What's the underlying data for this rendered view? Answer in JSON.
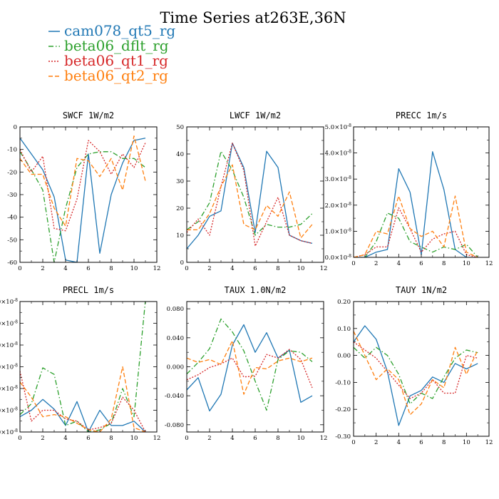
{
  "figure": {
    "title": "Time Series at263E,36N"
  },
  "legend": [
    {
      "name": "cam078_qt5_rg",
      "color": "#1f77b4",
      "dash": "solid"
    },
    {
      "name": "beta06_dflt_rg",
      "color": "#2ca02c",
      "dash": "dashdot"
    },
    {
      "name": "beta06_qt1_rg",
      "color": "#d62728",
      "dash": "dotted"
    },
    {
      "name": "beta06_qt2_rg",
      "color": "#ff7f0e",
      "dash": "dashed"
    }
  ],
  "chart_data": [
    {
      "type": "line",
      "title": "SWCF  1W/m2",
      "x": [
        0,
        1,
        2,
        3,
        4,
        5,
        6,
        7,
        8,
        9,
        10,
        11
      ],
      "xlim": [
        0,
        12
      ],
      "xticks": [
        0,
        2,
        4,
        6,
        8,
        10,
        12
      ],
      "xticklabels": [
        "0",
        "2",
        "4",
        "6",
        "8",
        "10",
        "12"
      ],
      "ylim": [
        -60,
        0
      ],
      "yticks": [
        -60,
        -50,
        -40,
        -30,
        -20,
        -10,
        0
      ],
      "yticklabels": [
        "-60",
        "-50",
        "-40",
        "-30",
        "-20",
        "-10",
        "0"
      ],
      "series": [
        {
          "name": "cam078_qt5_rg",
          "values": [
            -5,
            -12,
            -19,
            -31,
            -59,
            -60,
            -12,
            -56,
            -30,
            -16,
            -6,
            -5
          ]
        },
        {
          "name": "beta06_dflt_rg",
          "values": [
            -11,
            -19,
            -28,
            -60,
            -36,
            -18,
            -12,
            -11,
            -11,
            -14,
            -14,
            -18
          ]
        },
        {
          "name": "beta06_qt1_rg",
          "values": [
            -10,
            -20,
            -13,
            -45,
            -46,
            -32,
            -6,
            -11,
            -21,
            -12,
            -18,
            -7
          ]
        },
        {
          "name": "beta06_qt2_rg",
          "values": [
            -14,
            -21,
            -21,
            -36,
            -44,
            -14,
            -15,
            -22,
            -14,
            -28,
            -4,
            -24
          ]
        }
      ]
    },
    {
      "type": "line",
      "title": "LWCF  1W/m2",
      "x": [
        0,
        1,
        2,
        3,
        4,
        5,
        6,
        7,
        8,
        9,
        10,
        11
      ],
      "xlim": [
        0,
        12
      ],
      "xticks": [
        0,
        2,
        4,
        6,
        8,
        10,
        12
      ],
      "xticklabels": [
        "0",
        "2",
        "4",
        "6",
        "8",
        "10",
        "12"
      ],
      "ylim": [
        0,
        50
      ],
      "yticks": [
        0,
        10,
        20,
        30,
        40,
        50
      ],
      "yticklabels": [
        "0",
        "10",
        "20",
        "30",
        "40",
        "50"
      ],
      "series": [
        {
          "name": "cam078_qt5_rg",
          "values": [
            5,
            10,
            17,
            19,
            44,
            35,
            11,
            41,
            35,
            10,
            8,
            7
          ]
        },
        {
          "name": "beta06_dflt_rg",
          "values": [
            12,
            15,
            22,
            41,
            34,
            24,
            10,
            14,
            13,
            13,
            14,
            18
          ]
        },
        {
          "name": "beta06_qt1_rg",
          "values": [
            11,
            16,
            10,
            28,
            44,
            34,
            6,
            15,
            24,
            10,
            8,
            7
          ]
        },
        {
          "name": "beta06_qt2_rg",
          "values": [
            12,
            12,
            18,
            28,
            36,
            14,
            12,
            21,
            17,
            26,
            9,
            14
          ]
        }
      ]
    },
    {
      "type": "line",
      "title": "PRECC   1m/s",
      "x": [
        0,
        1,
        2,
        3,
        4,
        5,
        6,
        7,
        8,
        9,
        10,
        11
      ],
      "xlim": [
        0,
        12
      ],
      "xticks": [
        0,
        2,
        4,
        6,
        8,
        10,
        12
      ],
      "xticklabels": [
        "0",
        "2",
        "4",
        "6",
        "8",
        "10",
        "12"
      ],
      "ylim": [
        0,
        5e-08
      ],
      "yticks": [
        0,
        1e-08,
        2e-08,
        3e-08,
        4e-08,
        5e-08
      ],
      "yticklabels_mantissa": [
        "0.0",
        "1.0",
        "2.0",
        "3.0",
        "4.0",
        "5.0"
      ],
      "ytick_exp": "-8",
      "series": [
        {
          "name": "cam078_qt5_rg",
          "values": [
            0,
            0,
            2e-09,
            3e-09,
            3.4e-08,
            2.5e-08,
            1e-09,
            4.05e-08,
            2.6e-08,
            3e-09,
            0,
            0
          ]
        },
        {
          "name": "beta06_dflt_rg",
          "values": [
            0,
            0,
            6e-09,
            1.7e-08,
            1.5e-08,
            6e-09,
            4e-09,
            2e-09,
            4e-09,
            3e-09,
            5e-09,
            0
          ]
        },
        {
          "name": "beta06_qt1_rg",
          "values": [
            0,
            1e-09,
            4e-09,
            4e-09,
            1.9e-08,
            1.1e-08,
            2e-09,
            7e-09,
            9e-09,
            1e-08,
            1e-09,
            0
          ]
        },
        {
          "name": "beta06_qt2_rg",
          "values": [
            0,
            1e-09,
            1e-08,
            9e-09,
            2.35e-08,
            1.1e-08,
            8e-09,
            1e-08,
            4e-09,
            2.35e-08,
            2e-09,
            0
          ]
        }
      ]
    },
    {
      "type": "line",
      "title": "PRECL   1m/s",
      "x": [
        0,
        1,
        2,
        3,
        4,
        5,
        6,
        7,
        8,
        9,
        10,
        11
      ],
      "xlim": [
        0,
        12
      ],
      "xticks": [
        0,
        2,
        4,
        6,
        8,
        10,
        12
      ],
      "xticklabels": [
        "0",
        "2",
        "4",
        "6",
        "8",
        "10",
        "12"
      ],
      "ylim": [
        0,
        6e-08
      ],
      "yticks": [
        0,
        1e-08,
        2e-08,
        3e-08,
        4e-08,
        5e-08,
        6e-08
      ],
      "yticklabels_mantissa": [
        "0.0",
        "1.0",
        "2.0",
        "3.0",
        "4.0",
        "5.0",
        "6.0"
      ],
      "ytick_exp": "-8",
      "series": [
        {
          "name": "cam078_qt5_rg",
          "values": [
            7e-09,
            1e-08,
            1.5e-08,
            1.05e-08,
            3e-09,
            1.4e-08,
            0,
            1e-08,
            3e-09,
            3e-09,
            5e-09,
            0
          ]
        },
        {
          "name": "beta06_dflt_rg",
          "values": [
            8e-09,
            1.3e-08,
            2.95e-08,
            2.65e-08,
            3e-09,
            5e-09,
            0,
            1e-09,
            4e-09,
            2e-08,
            7e-09,
            6.05e-08
          ]
        },
        {
          "name": "beta06_qt1_rg",
          "values": [
            2.8e-08,
            5e-09,
            1e-08,
            1e-08,
            6e-09,
            5e-09,
            1e-09,
            2e-09,
            4e-09,
            1.6e-08,
            1e-08,
            0
          ]
        },
        {
          "name": "beta06_qt2_rg",
          "values": [
            2.3e-08,
            1.6e-08,
            7e-09,
            8e-09,
            7e-09,
            4e-09,
            1e-09,
            0,
            6e-09,
            3e-08,
            2e-09,
            0
          ]
        }
      ]
    },
    {
      "type": "line",
      "title": "TAUX  1.0N/m2",
      "x": [
        0,
        1,
        2,
        3,
        4,
        5,
        6,
        7,
        8,
        9,
        10,
        11
      ],
      "xlim": [
        0,
        12
      ],
      "xticks": [
        0,
        2,
        4,
        6,
        8,
        10,
        12
      ],
      "xticklabels": [
        "0",
        "2",
        "4",
        "6",
        "8",
        "10",
        "12"
      ],
      "ylim": [
        -0.09,
        0.09
      ],
      "yticks": [
        -0.08,
        -0.04,
        0,
        0.04,
        0.08
      ],
      "yticklabels": [
        "-0.080",
        "-0.040",
        "0.000",
        "0.040",
        "0.080"
      ],
      "series": [
        {
          "name": "cam078_qt5_rg",
          "values": [
            -0.032,
            -0.015,
            -0.061,
            -0.038,
            0.03,
            0.058,
            0.02,
            0.047,
            0.012,
            0.023,
            -0.049,
            -0.04
          ]
        },
        {
          "name": "beta06_dflt_rg",
          "values": [
            -0.01,
            0.006,
            0.025,
            0.066,
            0.048,
            0.022,
            -0.02,
            -0.06,
            0.01,
            0.022,
            0.02,
            0.007
          ]
        },
        {
          "name": "beta06_qt1_rg",
          "values": [
            -0.018,
            -0.011,
            -0.001,
            0.004,
            0.012,
            -0.014,
            -0.013,
            0.017,
            0.012,
            0.024,
            0.01,
            -0.029
          ]
        },
        {
          "name": "beta06_qt2_rg",
          "values": [
            0.012,
            0.006,
            0.01,
            0.003,
            0.036,
            -0.038,
            -0.001,
            -0.003,
            0.008,
            0.012,
            0.007,
            0.012
          ]
        }
      ]
    },
    {
      "type": "line",
      "title": "TAUY   1N/m2",
      "x": [
        0,
        1,
        2,
        3,
        4,
        5,
        6,
        7,
        8,
        9,
        10,
        11
      ],
      "xlim": [
        0,
        12
      ],
      "xticks": [
        0,
        2,
        4,
        6,
        8,
        10,
        12
      ],
      "xticklabels": [
        "0",
        "2",
        "4",
        "6",
        "8",
        "10",
        "12"
      ],
      "ylim": [
        -0.3,
        0.2
      ],
      "yticks": [
        -0.3,
        -0.2,
        -0.1,
        0,
        0.1,
        0.2
      ],
      "yticklabels": [
        "-0.30",
        "-0.20",
        "-0.10",
        "0.00",
        "0.10",
        "0.20"
      ],
      "series": [
        {
          "name": "cam078_qt5_rg",
          "values": [
            0.05,
            0.11,
            0.06,
            -0.06,
            -0.26,
            -0.15,
            -0.13,
            -0.08,
            -0.1,
            -0.03,
            -0.05,
            -0.03
          ]
        },
        {
          "name": "beta06_dflt_rg",
          "values": [
            0.03,
            -0.01,
            0.03,
            0.0,
            -0.07,
            -0.18,
            -0.14,
            -0.16,
            -0.08,
            -0.01,
            0.02,
            0.01
          ]
        },
        {
          "name": "beta06_qt1_rg",
          "values": [
            0.05,
            0.02,
            -0.01,
            -0.06,
            -0.11,
            -0.16,
            -0.14,
            -0.09,
            -0.14,
            -0.14,
            0.0,
            -0.01
          ]
        },
        {
          "name": "beta06_qt2_rg",
          "values": [
            0.09,
            0.0,
            -0.09,
            -0.05,
            -0.09,
            -0.22,
            -0.18,
            -0.09,
            -0.12,
            0.03,
            -0.07,
            0.02
          ]
        }
      ]
    }
  ]
}
